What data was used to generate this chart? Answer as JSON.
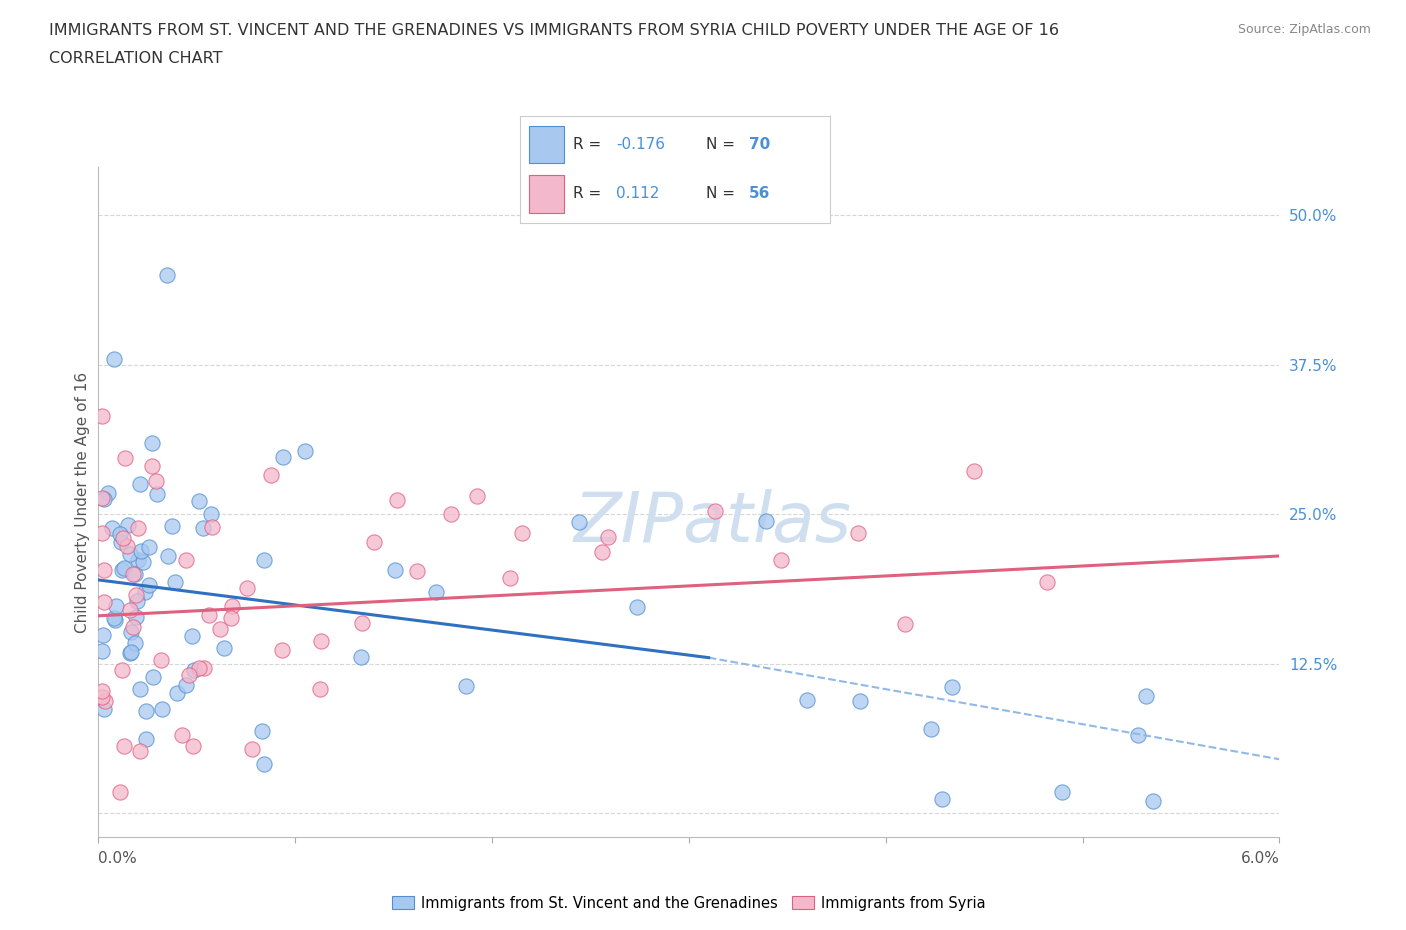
{
  "title_line1": "IMMIGRANTS FROM ST. VINCENT AND THE GRENADINES VS IMMIGRANTS FROM SYRIA CHILD POVERTY UNDER THE AGE OF 16",
  "title_line2": "CORRELATION CHART",
  "source_text": "Source: ZipAtlas.com",
  "xlim": [
    0.0,
    6.0
  ],
  "ylim": [
    -2.0,
    54.0
  ],
  "ytick_vals": [
    0.0,
    12.5,
    25.0,
    37.5,
    50.0
  ],
  "ytick_labels": [
    "",
    "12.5%",
    "25.0%",
    "37.5%",
    "50.0%"
  ],
  "blue_color": "#a8c8f0",
  "pink_color": "#f4b8cc",
  "blue_edge_color": "#5090d0",
  "pink_edge_color": "#e06080",
  "blue_line_color": "#3070c0",
  "pink_line_color": "#e06080",
  "blue_dashed_color": "#90b8e8",
  "title_color": "#333333",
  "watermark_color": "#d0dff0",
  "legend_N_color": "#4a90d9",
  "R_blue": -0.176,
  "N_blue": 70,
  "R_pink": 0.112,
  "N_pink": 56,
  "legend_label_blue": "Immigrants from St. Vincent and the Grenadines",
  "legend_label_pink": "Immigrants from Syria",
  "blue_line_x0": 0.0,
  "blue_line_y0": 19.5,
  "blue_line_x1": 3.1,
  "blue_line_y1": 13.0,
  "blue_dash_x0": 3.1,
  "blue_dash_y0": 13.0,
  "blue_dash_x1": 6.0,
  "blue_dash_y1": 4.5,
  "pink_line_x0": 0.0,
  "pink_line_y0": 16.5,
  "pink_line_x1": 6.0,
  "pink_line_y1": 21.5,
  "grid_color": "#cccccc",
  "grid_alpha": 0.8
}
